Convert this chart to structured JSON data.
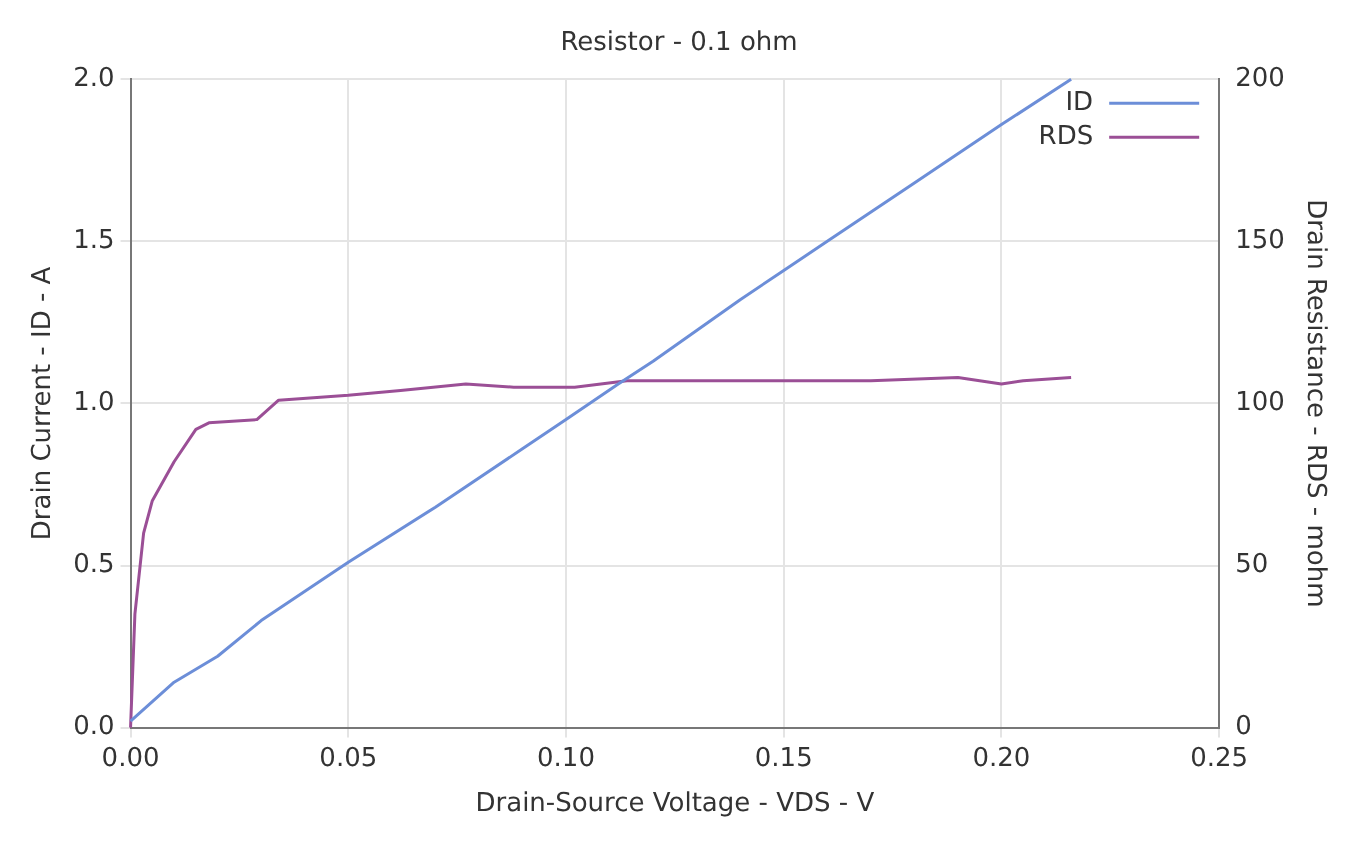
{
  "chart_data": {
    "type": "line",
    "title": "Resistor - 0.1 ohm",
    "xlabel": "Drain-Source Voltage - VDS - V",
    "ylabel": "Drain Current - ID - A",
    "y2label": "Drain Resistance - RDS - mohm",
    "xlim": [
      0,
      0.25
    ],
    "xticks": [
      {
        "value": 0,
        "label": "0.00"
      },
      {
        "value": 0.05,
        "label": "0.05"
      },
      {
        "value": 0.1,
        "label": "0.10"
      },
      {
        "value": 0.15,
        "label": "0.15"
      },
      {
        "value": 0.2,
        "label": "0.20"
      },
      {
        "value": 0.25,
        "label": "0.25"
      }
    ],
    "ylim": [
      0,
      2
    ],
    "yticks": [
      {
        "value": 0,
        "label": "0.0"
      },
      {
        "value": 0.5,
        "label": "0.5"
      },
      {
        "value": 1,
        "label": "1.0"
      },
      {
        "value": 1.5,
        "label": "1.5"
      },
      {
        "value": 2,
        "label": "2.0"
      }
    ],
    "y2lim": [
      0,
      200
    ],
    "y2ticks": [
      0,
      50,
      100,
      150,
      200
    ],
    "grid": true,
    "legend": "top right",
    "line_style": "solid",
    "marker": "none",
    "series": [
      {
        "name": "ID",
        "color": "#6c8ed8",
        "x": [
          0,
          0.01,
          0.02,
          0.03,
          0.05,
          0.07,
          0.09,
          0.1,
          0.112,
          0.12,
          0.14,
          0.15,
          0.16,
          0.18,
          0.2,
          0.216
        ],
        "values": [
          0.02,
          0.14,
          0.22,
          0.33,
          0.51,
          0.68,
          0.86,
          0.95,
          1.06,
          1.13,
          1.32,
          1.41,
          1.5,
          1.68,
          1.86,
          2.0
        ]
      },
      {
        "name": "RDS",
        "color": "#9b4f96",
        "axis": "y2",
        "x": [
          0,
          0.001,
          0.003,
          0.005,
          0.01,
          0.015,
          0.018,
          0.029,
          0.034,
          0.05,
          0.062,
          0.077,
          0.088,
          0.102,
          0.114,
          0.14,
          0.17,
          0.19,
          0.2,
          0.205,
          0.216
        ],
        "values": [
          0,
          35,
          60,
          70,
          82,
          92,
          94,
          95,
          101,
          102.5,
          104,
          106,
          105,
          105,
          107,
          107,
          107,
          108,
          106,
          107,
          108
        ]
      }
    ]
  }
}
